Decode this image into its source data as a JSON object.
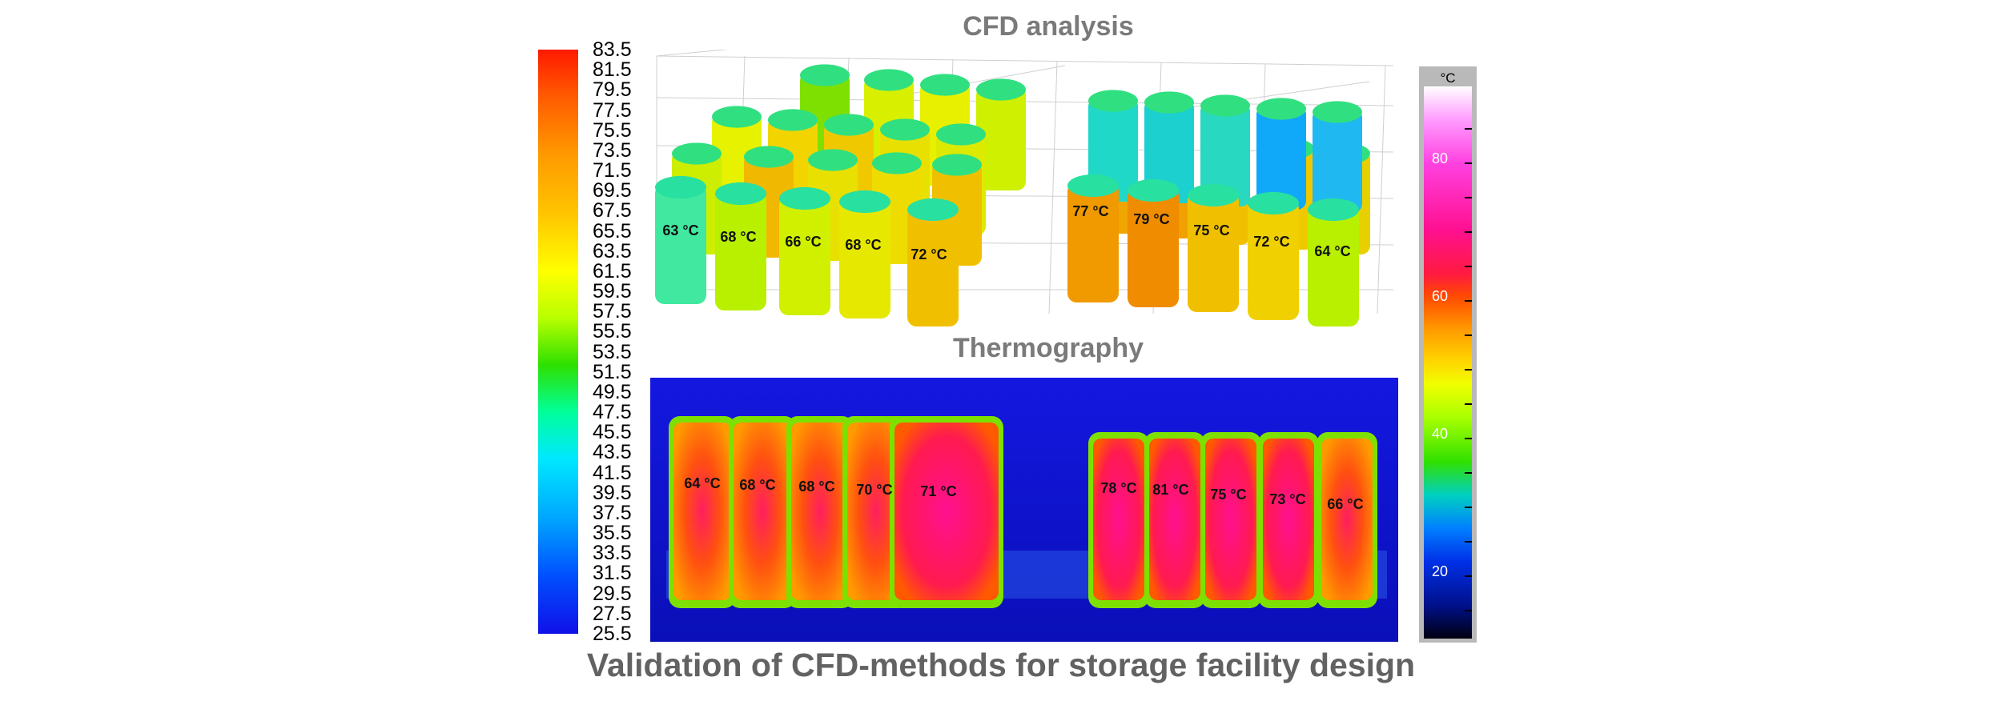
{
  "titles": {
    "cfd": "CFD analysis",
    "thermography": "Thermography",
    "main": "Validation of CFD-methods for storage facility design"
  },
  "cfd_scale": {
    "ticks": [
      "83.5",
      "81.5",
      "79.5",
      "77.5",
      "75.5",
      "73.5",
      "71.5",
      "69.5",
      "67.5",
      "65.5",
      "63.5",
      "61.5",
      "59.5",
      "57.5",
      "55.5",
      "53.5",
      "51.5",
      "49.5",
      "47.5",
      "45.5",
      "43.5",
      "41.5",
      "39.5",
      "37.5",
      "35.5",
      "33.5",
      "31.5",
      "29.5",
      "27.5",
      "25.5"
    ]
  },
  "cfd_labels": [
    "63 °C",
    "68 °C",
    "66 °C",
    "68 °C",
    "72 °C",
    "77 °C",
    "79 °C",
    "75 °C",
    "72 °C",
    "64 °C"
  ],
  "thermo_labels": [
    "64 °C",
    "68 °C",
    "68 °C",
    "70 °C",
    "71 °C",
    "78 °C",
    "81 °C",
    "75 °C",
    "73 °C",
    "66 °C"
  ],
  "thermo_scale": {
    "unit": "°C",
    "ticks": [
      "80",
      "60",
      "40",
      "20"
    ]
  }
}
